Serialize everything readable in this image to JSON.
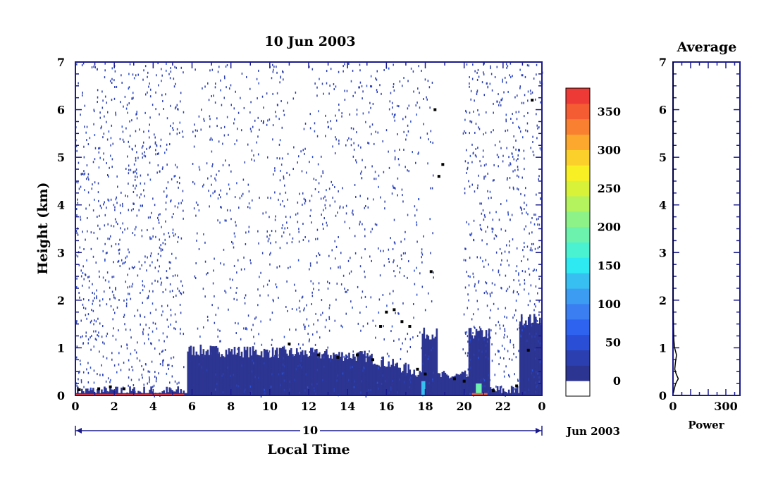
{
  "chart_data": [
    {
      "type": "heatmap",
      "title": "10 Jun 2003",
      "xlabel": "Local Time",
      "ylabel": "Height (km)",
      "xlim": [
        0,
        24
      ],
      "ylim": [
        0,
        7
      ],
      "x_ticks": [
        "0",
        "2",
        "4",
        "6",
        "8",
        "10",
        "12",
        "14",
        "16",
        "18",
        "20",
        "22",
        "0"
      ],
      "y_ticks": [
        "0",
        "1",
        "2",
        "3",
        "4",
        "5",
        "6",
        "7"
      ],
      "date_bar_label": "10",
      "date_suffix": "Jun 2003",
      "colorbar": {
        "ticks": [
          "0",
          "50",
          "100",
          "150",
          "200",
          "250",
          "300",
          "350"
        ],
        "range": [
          0,
          380
        ],
        "colors": [
          "#ffffff",
          "#2d3592",
          "#2b3fb0",
          "#2a4fd6",
          "#2e63f0",
          "#3a7ef2",
          "#3b9cf2",
          "#38bff2",
          "#2ee8f2",
          "#4af2d2",
          "#6df2ae",
          "#8df288",
          "#b4f25e",
          "#d8f23a",
          "#f8f025",
          "#fcd02a",
          "#fca82e",
          "#f88030",
          "#f45c34",
          "#ee3a36"
        ]
      },
      "boundary_layer_height_km": [
        {
          "t": 0.2,
          "h": 0.12
        },
        {
          "t": 1.2,
          "h": 0.14
        },
        {
          "t": 1.8,
          "h": 0.18
        },
        {
          "t": 2.5,
          "h": 0.14
        },
        {
          "t": 11.0,
          "h": 1.08
        },
        {
          "t": 12.5,
          "h": 0.85
        },
        {
          "t": 13.5,
          "h": 0.8
        },
        {
          "t": 14.5,
          "h": 0.85
        },
        {
          "t": 15.3,
          "h": 0.75
        },
        {
          "t": 15.7,
          "h": 1.45
        },
        {
          "t": 16.0,
          "h": 1.75
        },
        {
          "t": 16.4,
          "h": 1.8
        },
        {
          "t": 16.8,
          "h": 1.55
        },
        {
          "t": 17.2,
          "h": 1.45
        },
        {
          "t": 17.6,
          "h": 0.55
        },
        {
          "t": 18.0,
          "h": 0.45
        },
        {
          "t": 18.3,
          "h": 2.6
        },
        {
          "t": 18.5,
          "h": 6.0
        },
        {
          "t": 18.7,
          "h": 4.6
        },
        {
          "t": 18.9,
          "h": 4.85
        },
        {
          "t": 19.5,
          "h": 0.35
        },
        {
          "t": 20.0,
          "h": 0.3
        },
        {
          "t": 21.5,
          "h": 0.1
        },
        {
          "t": 22.7,
          "h": 0.2
        },
        {
          "t": 23.3,
          "h": 0.95
        },
        {
          "t": 23.5,
          "h": 6.2
        }
      ]
    },
    {
      "type": "line",
      "title": "Average",
      "xlabel": "Power",
      "ylabel": "",
      "xlim": [
        0,
        380
      ],
      "ylim": [
        0,
        7
      ],
      "x_ticks": [
        "0",
        "300"
      ],
      "y_ticks": [
        "0",
        "1",
        "2",
        "3",
        "4",
        "5",
        "6",
        "7"
      ],
      "series": [
        {
          "x": [
            2,
            8,
            15,
            30,
            18,
            10,
            14,
            20,
            9,
            5,
            3,
            2,
            1,
            1,
            1
          ],
          "y": [
            0.05,
            0.15,
            0.25,
            0.35,
            0.45,
            0.55,
            0.7,
            0.85,
            1.0,
            1.15,
            1.35,
            1.6,
            2.0,
            3.0,
            7.0
          ]
        }
      ]
    }
  ]
}
